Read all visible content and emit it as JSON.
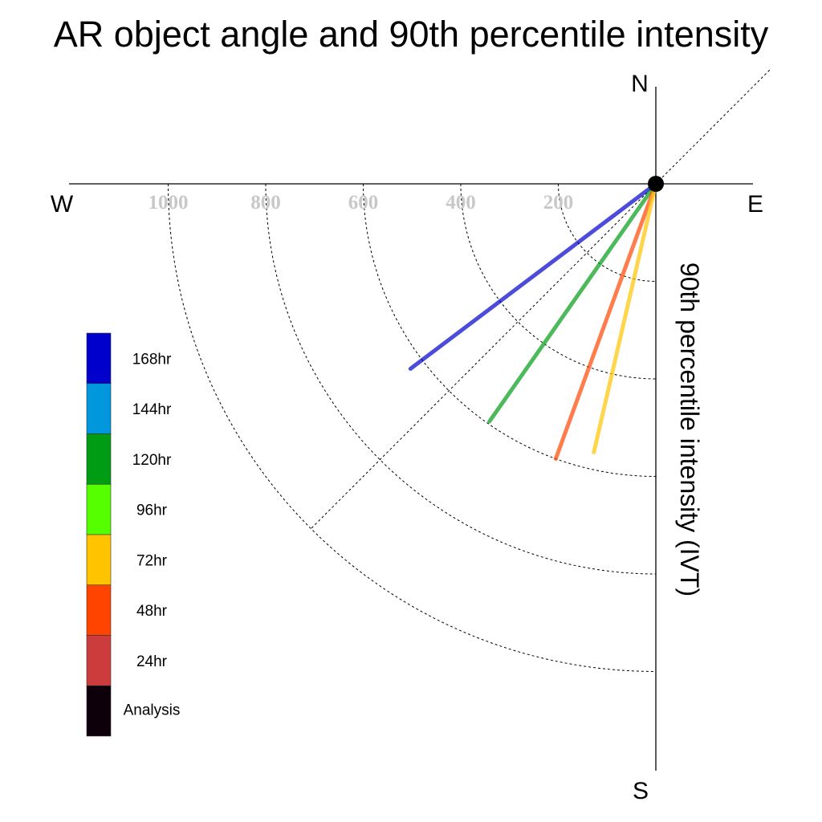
{
  "chart_data": {
    "type": "line",
    "title": "AR object angle and 90th percentile intensity",
    "axis_label": "90th percentile intensity (IVT)",
    "compass": {
      "north": "N",
      "south": "S",
      "east": "E",
      "west": "W"
    },
    "radial_range": [
      0,
      1200
    ],
    "radial_ticks": [
      {
        "value": 200,
        "label": "200"
      },
      {
        "value": 400,
        "label": "400"
      },
      {
        "value": 600,
        "label": "600"
      },
      {
        "value": 800,
        "label": "800"
      },
      {
        "value": 1000,
        "label": "1000"
      }
    ],
    "reference_bearing_deg": 225,
    "series": [
      {
        "name": "168hr",
        "color": "#0000cc",
        "bearing_deg": 233,
        "intensity": 630
      },
      {
        "name": "120hr",
        "color": "#009d14",
        "bearing_deg": 215,
        "intensity": 595
      },
      {
        "name": "48hr",
        "color": "#ff4400",
        "bearing_deg": 200,
        "intensity": 600
      },
      {
        "name": "72hr",
        "color": "#ffc300",
        "bearing_deg": 193,
        "intensity": 565
      }
    ],
    "legend": [
      {
        "label": "168hr",
        "color": "#0000cc"
      },
      {
        "label": "144hr",
        "color": "#0097dc"
      },
      {
        "label": "120hr",
        "color": "#009d14"
      },
      {
        "label": "96hr",
        "color": "#55ff00"
      },
      {
        "label": "72hr",
        "color": "#ffc300"
      },
      {
        "label": "48hr",
        "color": "#ff4400"
      },
      {
        "label": "24hr",
        "color": "#cc3c3c"
      },
      {
        "label": "Analysis",
        "color": "#0d000a"
      }
    ],
    "legend_placement": "left",
    "grid": true
  }
}
